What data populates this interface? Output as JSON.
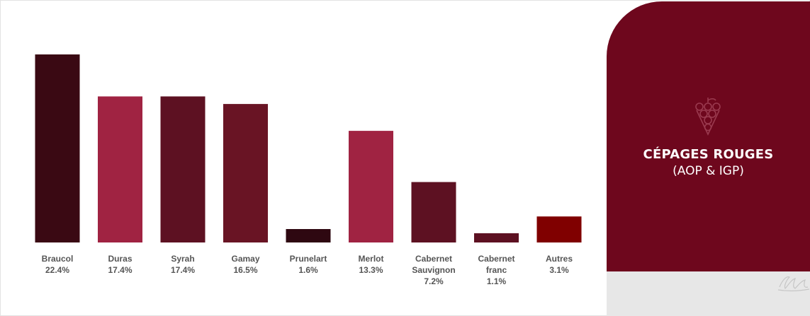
{
  "chart_data": {
    "type": "bar",
    "title": "",
    "xlabel": "",
    "ylabel": "",
    "ylim": [
      0,
      22.4
    ],
    "grid": false,
    "legend": "none",
    "categories": [
      [
        "Braucol"
      ],
      [
        "Duras"
      ],
      [
        "Syrah"
      ],
      [
        "Gamay"
      ],
      [
        "Prunelart"
      ],
      [
        "Merlot"
      ],
      [
        "Cabernet",
        "Sauvignon"
      ],
      [
        "Cabernet",
        "franc"
      ],
      [
        "Autres"
      ]
    ],
    "values": [
      22.4,
      17.4,
      17.4,
      16.5,
      1.6,
      13.3,
      7.2,
      1.1,
      3.1
    ],
    "value_labels": [
      "22.4%",
      "17.4%",
      "17.4%",
      "16.5%",
      "1.6%",
      "13.3%",
      "7.2%",
      "1.1%",
      "3.1%"
    ],
    "colors": [
      "#3a0913",
      "#a02342",
      "#5d1122",
      "#691424",
      "#2e0811",
      "#a02342",
      "#5d1122",
      "#5d1122",
      "#800000"
    ]
  },
  "panel": {
    "title": "CÉPAGES ROUGES",
    "subtitle": "(AOP & IGP)",
    "icon": "grape-icon",
    "background": "#6e071d",
    "footer_background": "#e7e7e7"
  }
}
